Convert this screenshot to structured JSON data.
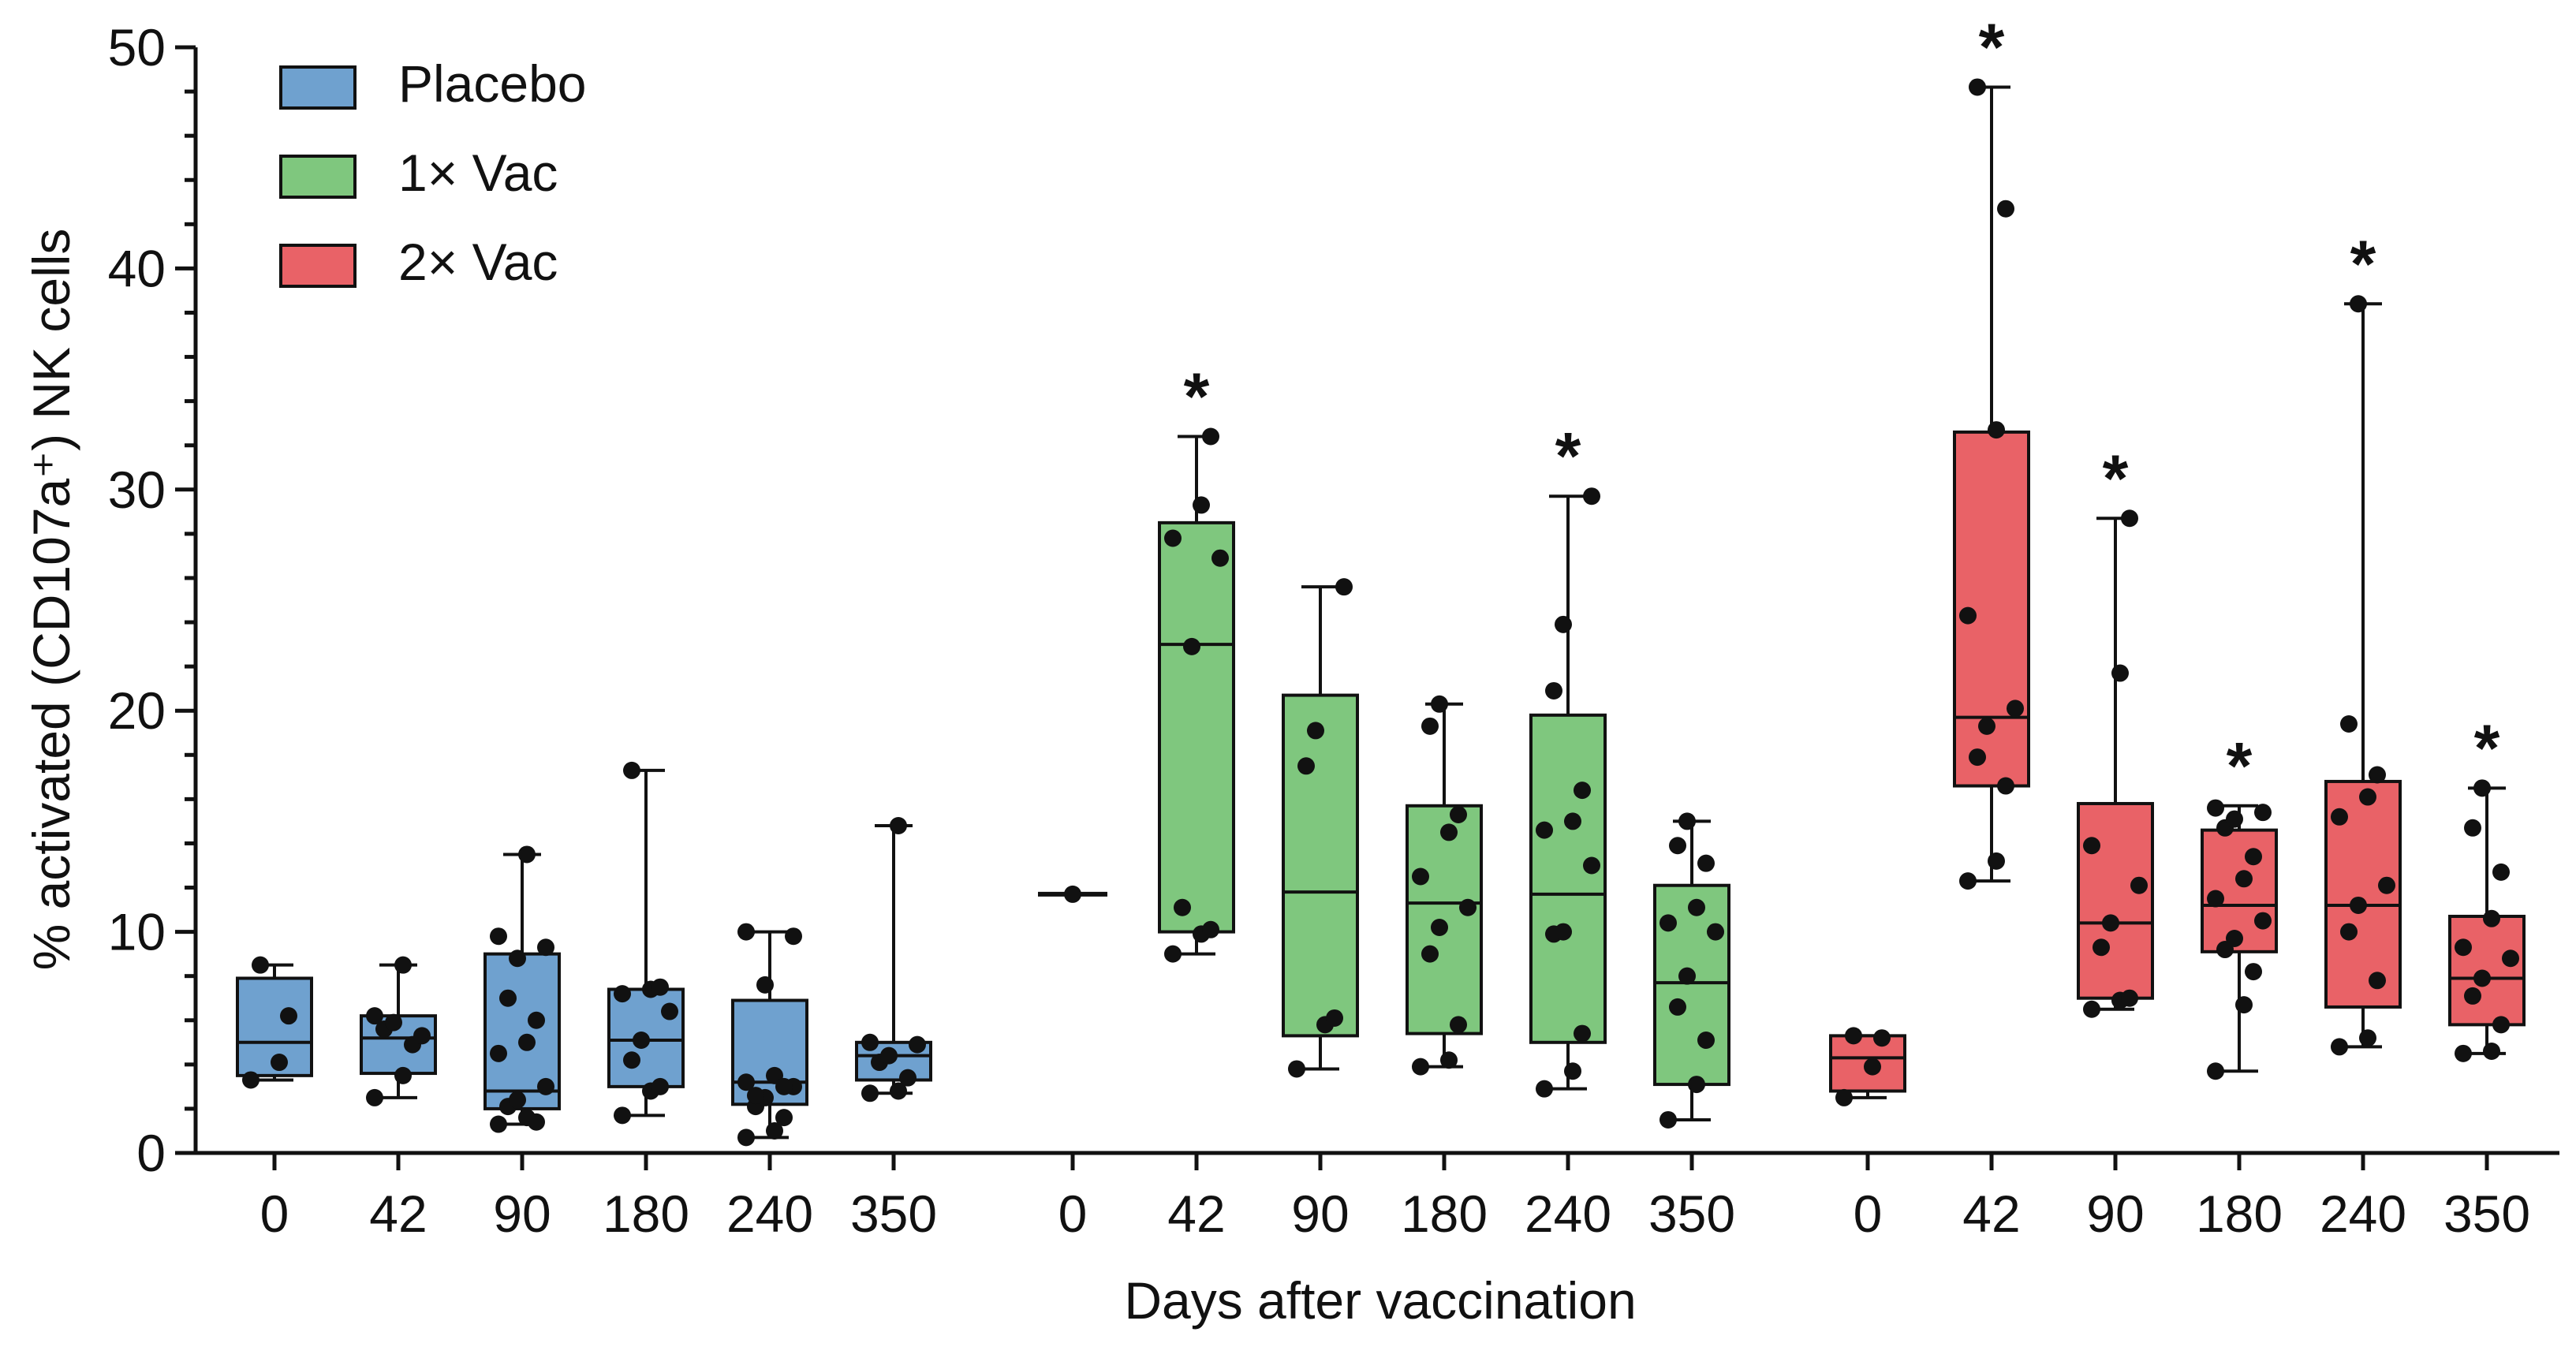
{
  "chart_data": {
    "type": "box",
    "title": "",
    "xlabel": "Days after vaccination",
    "ylabel": "% activated (CD107a⁺) NK cells",
    "ylim": [
      0,
      50
    ],
    "yticks": [
      0,
      10,
      20,
      30,
      40,
      50
    ],
    "colors": {
      "Placebo": "#6fa1cf",
      "1× Vac": "#7fc77e",
      "2× Vac": "#e96267",
      "stroke": "#111111"
    },
    "legend": {
      "position": "top-left",
      "entries": [
        "Placebo",
        "1× Vac",
        "2× Vac"
      ]
    },
    "significance_marker": "*",
    "groups": [
      {
        "name": "Placebo",
        "categories": [
          "0",
          "42",
          "90",
          "180",
          "240",
          "350"
        ],
        "boxes": [
          {
            "day": "0",
            "min": 3.3,
            "q1": 3.5,
            "median": 5.0,
            "q3": 7.9,
            "max": 8.5,
            "sig": false,
            "points": [
              3.3,
              4.1,
              6.2,
              8.5
            ]
          },
          {
            "day": "42",
            "min": 2.5,
            "q1": 3.6,
            "median": 5.2,
            "q3": 6.2,
            "max": 8.5,
            "sig": false,
            "points": [
              2.5,
              3.5,
              4.9,
              5.6,
              5.9,
              5.3,
              6.2,
              8.5
            ]
          },
          {
            "day": "90",
            "min": 1.3,
            "q1": 2.0,
            "median": 2.8,
            "q3": 9.0,
            "max": 13.5,
            "sig": false,
            "points": [
              1.3,
              1.6,
              1.4,
              2.1,
              2.4,
              3.0,
              4.5,
              5.0,
              6.0,
              7.0,
              8.8,
              9.3,
              9.8,
              13.5
            ]
          },
          {
            "day": "180",
            "min": 1.7,
            "q1": 3.0,
            "median": 5.1,
            "q3": 7.4,
            "max": 17.3,
            "sig": false,
            "points": [
              1.7,
              2.8,
              3.0,
              4.2,
              5.1,
              6.4,
              7.2,
              7.4,
              7.5,
              17.3
            ]
          },
          {
            "day": "240",
            "min": 0.7,
            "q1": 2.2,
            "median": 3.2,
            "q3": 6.9,
            "max": 10.0,
            "sig": false,
            "points": [
              0.7,
              1.0,
              1.6,
              2.1,
              2.5,
              3.0,
              3.2,
              3.5,
              3.0,
              2.6,
              7.6,
              9.8,
              10.0
            ]
          },
          {
            "day": "350",
            "min": 2.7,
            "q1": 3.3,
            "median": 4.4,
            "q3": 5.0,
            "max": 14.8,
            "sig": false,
            "points": [
              2.7,
              2.8,
              3.4,
              4.1,
              4.4,
              4.9,
              5.0,
              14.8
            ]
          }
        ]
      },
      {
        "name": "1× Vac",
        "categories": [
          "0",
          "42",
          "90",
          "180",
          "240",
          "350"
        ],
        "boxes": [
          {
            "day": "0",
            "min": 11.7,
            "q1": 11.7,
            "median": 11.7,
            "q3": 11.7,
            "max": 11.7,
            "sig": false,
            "points": [
              11.7
            ]
          },
          {
            "day": "42",
            "min": 9.0,
            "q1": 10.0,
            "median": 23.0,
            "q3": 28.5,
            "max": 32.4,
            "sig": true,
            "points": [
              9.0,
              9.9,
              10.1,
              11.1,
              22.9,
              26.9,
              27.8,
              29.3,
              32.4
            ]
          },
          {
            "day": "90",
            "min": 3.8,
            "q1": 5.3,
            "median": 11.8,
            "q3": 20.7,
            "max": 25.6,
            "sig": false,
            "points": [
              3.8,
              5.8,
              6.1,
              17.5,
              19.1,
              25.6
            ]
          },
          {
            "day": "180",
            "min": 3.9,
            "q1": 5.4,
            "median": 11.3,
            "q3": 15.7,
            "max": 20.3,
            "sig": false,
            "points": [
              3.9,
              4.2,
              5.8,
              9.0,
              10.2,
              11.1,
              12.5,
              14.5,
              15.3,
              19.3,
              20.3
            ]
          },
          {
            "day": "240",
            "min": 2.9,
            "q1": 5.0,
            "median": 11.7,
            "q3": 19.8,
            "max": 29.7,
            "sig": true,
            "points": [
              2.9,
              3.7,
              5.4,
              9.9,
              10.0,
              13.0,
              14.6,
              15.0,
              16.4,
              20.9,
              23.9,
              29.7
            ]
          },
          {
            "day": "350",
            "min": 1.5,
            "q1": 3.1,
            "median": 7.7,
            "q3": 12.1,
            "max": 15.0,
            "sig": false,
            "points": [
              1.5,
              3.1,
              5.1,
              6.6,
              8.0,
              10.0,
              10.4,
              11.1,
              13.1,
              13.9,
              15.0
            ]
          }
        ]
      },
      {
        "name": "2× Vac",
        "categories": [
          "0",
          "42",
          "90",
          "180",
          "240",
          "350"
        ],
        "boxes": [
          {
            "day": "0",
            "min": 2.5,
            "q1": 2.8,
            "median": 4.3,
            "q3": 5.3,
            "max": 5.3,
            "sig": false,
            "points": [
              2.5,
              3.9,
              5.2,
              5.3
            ]
          },
          {
            "day": "42",
            "min": 12.3,
            "q1": 16.6,
            "median": 19.7,
            "q3": 32.6,
            "max": 48.2,
            "sig": true,
            "points": [
              12.3,
              13.2,
              16.6,
              17.9,
              19.3,
              20.1,
              24.3,
              32.7,
              42.7,
              48.2
            ]
          },
          {
            "day": "90",
            "min": 6.5,
            "q1": 7.0,
            "median": 10.4,
            "q3": 15.8,
            "max": 28.7,
            "sig": true,
            "points": [
              6.5,
              6.9,
              7.0,
              9.3,
              10.4,
              12.1,
              13.9,
              21.7,
              28.7
            ]
          },
          {
            "day": "180",
            "min": 3.7,
            "q1": 9.1,
            "median": 11.2,
            "q3": 14.6,
            "max": 15.7,
            "sig": true,
            "points": [
              3.7,
              6.7,
              8.2,
              9.2,
              9.7,
              10.5,
              11.5,
              12.4,
              13.4,
              14.7,
              15.1,
              15.4,
              15.6
            ]
          },
          {
            "day": "240",
            "min": 4.8,
            "q1": 6.6,
            "median": 11.2,
            "q3": 16.8,
            "max": 38.4,
            "sig": true,
            "points": [
              4.8,
              5.2,
              7.8,
              10.0,
              11.2,
              12.1,
              15.2,
              16.1,
              17.1,
              19.4,
              38.4
            ]
          },
          {
            "day": "350",
            "min": 4.5,
            "q1": 5.8,
            "median": 7.9,
            "q3": 10.7,
            "max": 16.5,
            "sig": true,
            "points": [
              4.5,
              4.6,
              5.8,
              7.1,
              7.9,
              8.8,
              9.3,
              10.6,
              12.7,
              14.7,
              16.5
            ]
          }
        ]
      }
    ]
  }
}
